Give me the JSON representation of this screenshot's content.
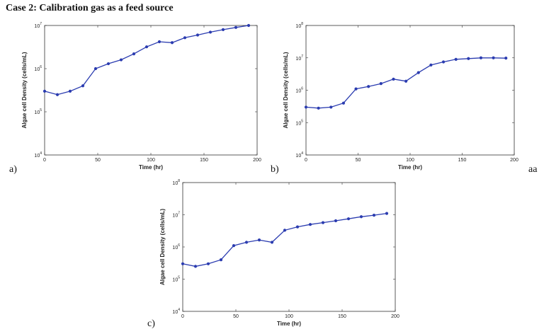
{
  "heading": "Case 2: Calibration gas as a feed source",
  "stray_label": "aa",
  "chart_data": [
    {
      "type": "line",
      "panel_label": "a)",
      "xlabel": "Time (hr)",
      "ylabel": "Algae cell Density (cells/mL)",
      "xlim": [
        0,
        200
      ],
      "ylim": [
        10000,
        10000000
      ],
      "yscale": "log",
      "x_ticks": [
        0,
        50,
        100,
        150,
        200
      ],
      "y_ticks": [
        {
          "base": "10",
          "exp": "4",
          "value": 10000
        },
        {
          "base": "10",
          "exp": "5",
          "value": 100000
        },
        {
          "base": "10",
          "exp": "6",
          "value": 1000000
        },
        {
          "base": "10",
          "exp": "7",
          "value": 10000000
        }
      ],
      "grid": false,
      "color": "#2b3cb0",
      "series": [
        {
          "x": [
            0,
            12,
            24,
            36,
            48,
            60,
            72,
            84,
            96,
            108,
            120,
            132,
            144,
            156,
            168,
            180,
            192
          ],
          "y": [
            300000,
            250000,
            300000,
            400000,
            1000000,
            1300000,
            1600000,
            2200000,
            3200000,
            4200000,
            4000000,
            5200000,
            6000000,
            7000000,
            8000000,
            9000000,
            10000000
          ]
        }
      ]
    },
    {
      "type": "line",
      "panel_label": "b)",
      "xlabel": "Time (hr)",
      "ylabel": "Algae cell Density (cells/mL)",
      "xlim": [
        0,
        200
      ],
      "ylim": [
        10000,
        100000000
      ],
      "yscale": "log",
      "x_ticks": [
        0,
        50,
        100,
        150,
        200
      ],
      "y_ticks": [
        {
          "base": "10",
          "exp": "4",
          "value": 10000
        },
        {
          "base": "10",
          "exp": "5",
          "value": 100000
        },
        {
          "base": "10",
          "exp": "6",
          "value": 1000000
        },
        {
          "base": "10",
          "exp": "7",
          "value": 10000000
        },
        {
          "base": "10",
          "exp": "8",
          "value": 100000000
        }
      ],
      "grid": false,
      "color": "#2b3cb0",
      "series": [
        {
          "x": [
            0,
            12,
            24,
            36,
            48,
            60,
            72,
            84,
            96,
            108,
            120,
            132,
            144,
            156,
            168,
            180,
            192
          ],
          "y": [
            300000,
            280000,
            300000,
            400000,
            1100000,
            1300000,
            1600000,
            2200000,
            1900000,
            3500000,
            6000000,
            7500000,
            9000000,
            9500000,
            10000000,
            10000000,
            9800000
          ]
        }
      ]
    },
    {
      "type": "line",
      "panel_label": "c)",
      "xlabel": "Time (hr)",
      "ylabel": "Algae cell Density (cells/mL)",
      "xlim": [
        0,
        200
      ],
      "ylim": [
        10000,
        100000000
      ],
      "yscale": "log",
      "x_ticks": [
        0,
        50,
        100,
        150,
        200
      ],
      "y_ticks": [
        {
          "base": "10",
          "exp": "4",
          "value": 10000
        },
        {
          "base": "10",
          "exp": "5",
          "value": 100000
        },
        {
          "base": "10",
          "exp": "6",
          "value": 1000000
        },
        {
          "base": "10",
          "exp": "7",
          "value": 10000000
        },
        {
          "base": "10",
          "exp": "8",
          "value": 100000000
        }
      ],
      "grid": false,
      "color": "#2b3cb0",
      "series": [
        {
          "x": [
            0,
            12,
            24,
            36,
            48,
            60,
            72,
            84,
            96,
            108,
            120,
            132,
            144,
            156,
            168,
            180,
            192
          ],
          "y": [
            300000,
            250000,
            300000,
            400000,
            1100000,
            1400000,
            1650000,
            1400000,
            3300000,
            4200000,
            5000000,
            5700000,
            6500000,
            7500000,
            8700000,
            9700000,
            11000000
          ]
        }
      ]
    }
  ]
}
